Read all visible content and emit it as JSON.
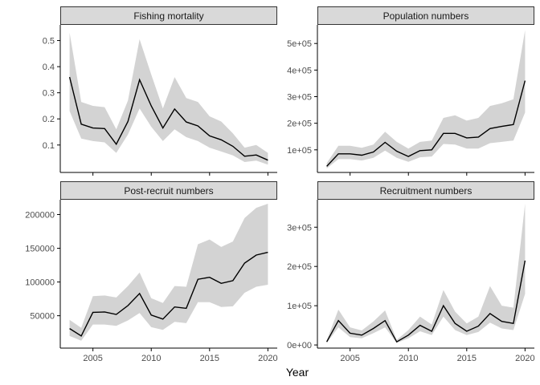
{
  "figure": {
    "xlabel": "Year"
  },
  "colors": {
    "band": "#d3d3d3",
    "line": "#000000",
    "strip": "#d9d9d9",
    "strip_border": "#333333",
    "axis": "#000000",
    "tick_text": "#4d4d4d"
  },
  "chart_data": [
    {
      "type": "line",
      "title": "Fishing mortality",
      "x": [
        2003,
        2004,
        2005,
        2006,
        2007,
        2008,
        2009,
        2010,
        2011,
        2012,
        2013,
        2014,
        2015,
        2016,
        2017,
        2018,
        2019,
        2020
      ],
      "series": [
        {
          "values": [
            0.36,
            0.18,
            0.165,
            0.163,
            0.103,
            0.19,
            0.35,
            0.25,
            0.165,
            0.238,
            0.188,
            0.173,
            0.135,
            0.12,
            0.095,
            0.057,
            0.062,
            0.042
          ]
        }
      ],
      "band": {
        "lower": [
          0.23,
          0.125,
          0.115,
          0.11,
          0.07,
          0.14,
          0.24,
          0.17,
          0.115,
          0.16,
          0.13,
          0.115,
          0.09,
          0.075,
          0.06,
          0.035,
          0.04,
          0.025
        ],
        "upper": [
          0.53,
          0.265,
          0.25,
          0.245,
          0.16,
          0.27,
          0.505,
          0.37,
          0.24,
          0.36,
          0.28,
          0.265,
          0.21,
          0.19,
          0.145,
          0.09,
          0.1,
          0.07
        ]
      },
      "xlim": [
        2002.2,
        2020.8
      ],
      "ylim": [
        -0.005,
        0.56
      ],
      "x_ticks": [
        2005,
        2010,
        2015,
        2020
      ],
      "x_tick_labels": [
        "2005",
        "2010",
        "2015",
        "2020"
      ],
      "y_ticks": [
        0.1,
        0.2,
        0.3,
        0.4,
        0.5
      ],
      "y_tick_labels": [
        "0.1",
        "0.2",
        "0.3",
        "0.4",
        "0.5"
      ],
      "show_x_tick_labels": false,
      "grid": false
    },
    {
      "type": "line",
      "title": "Population numbers",
      "x": [
        2003,
        2004,
        2005,
        2006,
        2007,
        2008,
        2009,
        2010,
        2011,
        2012,
        2013,
        2014,
        2015,
        2016,
        2017,
        2018,
        2019,
        2020
      ],
      "series": [
        {
          "values": [
            38000,
            85000,
            85000,
            80000,
            92000,
            128000,
            95000,
            75000,
            97000,
            100000,
            162000,
            162000,
            145000,
            148000,
            180000,
            188000,
            195000,
            360000
          ]
        }
      ],
      "band": {
        "lower": [
          30000,
          65000,
          65000,
          60000,
          70000,
          97000,
          70000,
          55000,
          72000,
          75000,
          122000,
          120000,
          105000,
          105000,
          125000,
          130000,
          135000,
          240000
        ],
        "upper": [
          50000,
          115000,
          115000,
          108000,
          120000,
          168000,
          130000,
          105000,
          130000,
          135000,
          220000,
          230000,
          210000,
          220000,
          265000,
          275000,
          290000,
          550000
        ]
      },
      "xlim": [
        2002.2,
        2020.8
      ],
      "ylim": [
        15000,
        570000
      ],
      "x_ticks": [
        2005,
        2010,
        2015,
        2020
      ],
      "x_tick_labels": [
        "2005",
        "2010",
        "2015",
        "2020"
      ],
      "y_ticks": [
        100000,
        200000,
        300000,
        400000,
        500000
      ],
      "y_tick_labels": [
        "1e+05",
        "2e+05",
        "3e+05",
        "4e+05",
        "5e+05"
      ],
      "show_x_tick_labels": false,
      "grid": false
    },
    {
      "type": "line",
      "title": "Post-recruit numbers",
      "x": [
        2003,
        2004,
        2005,
        2006,
        2007,
        2008,
        2009,
        2010,
        2011,
        2012,
        2013,
        2014,
        2015,
        2016,
        2017,
        2018,
        2019,
        2020
      ],
      "series": [
        {
          "values": [
            31000,
            20000,
            55000,
            55500,
            52000,
            65000,
            83000,
            51000,
            45000,
            63000,
            61000,
            104000,
            107000,
            98000,
            102000,
            128000,
            140000,
            144000
          ]
        }
      ],
      "band": {
        "lower": [
          20000,
          13000,
          37000,
          37000,
          35000,
          43000,
          54000,
          33000,
          29000,
          41000,
          39000,
          70000,
          70000,
          63000,
          64000,
          84000,
          93000,
          96000
        ],
        "upper": [
          44000,
          32000,
          79000,
          80000,
          77000,
          94000,
          114000,
          76000,
          69000,
          94000,
          93000,
          156000,
          163000,
          152000,
          160000,
          195000,
          210000,
          216000
        ]
      },
      "xlim": [
        2002.2,
        2020.8
      ],
      "ylim": [
        2000,
        222000
      ],
      "x_ticks": [
        2005,
        2010,
        2015,
        2020
      ],
      "x_tick_labels": [
        "2005",
        "2010",
        "2015",
        "2020"
      ],
      "y_ticks": [
        50000,
        100000,
        150000,
        200000
      ],
      "y_tick_labels": [
        "50000",
        "100000",
        "150000",
        "200000"
      ],
      "show_x_tick_labels": true,
      "grid": false
    },
    {
      "type": "line",
      "title": "Recruitment numbers",
      "x": [
        2003,
        2004,
        2005,
        2006,
        2007,
        2008,
        2009,
        2010,
        2011,
        2012,
        2013,
        2014,
        2015,
        2016,
        2017,
        2018,
        2019,
        2020
      ],
      "series": [
        {
          "values": [
            8000,
            62000,
            30000,
            25000,
            42000,
            62000,
            8000,
            25000,
            50000,
            35000,
            100000,
            55000,
            35000,
            48000,
            80000,
            60000,
            55000,
            215000
          ]
        }
      ],
      "band": {
        "lower": [
          5000,
          45000,
          20000,
          17000,
          30000,
          45000,
          5000,
          17000,
          35000,
          25000,
          72000,
          38000,
          25000,
          33000,
          57000,
          42000,
          38000,
          130000
        ],
        "upper": [
          12000,
          90000,
          45000,
          37000,
          60000,
          88000,
          13000,
          38000,
          72000,
          52000,
          140000,
          85000,
          55000,
          72000,
          150000,
          100000,
          95000,
          360000
        ]
      },
      "xlim": [
        2002.2,
        2020.8
      ],
      "ylim": [
        -8000,
        370000
      ],
      "x_ticks": [
        2005,
        2010,
        2015,
        2020
      ],
      "x_tick_labels": [
        "2005",
        "2010",
        "2015",
        "2020"
      ],
      "y_ticks": [
        0,
        100000,
        200000,
        300000
      ],
      "y_tick_labels": [
        "0e+00",
        "1e+05",
        "2e+05",
        "3e+05"
      ],
      "show_x_tick_labels": true,
      "grid": false
    }
  ]
}
